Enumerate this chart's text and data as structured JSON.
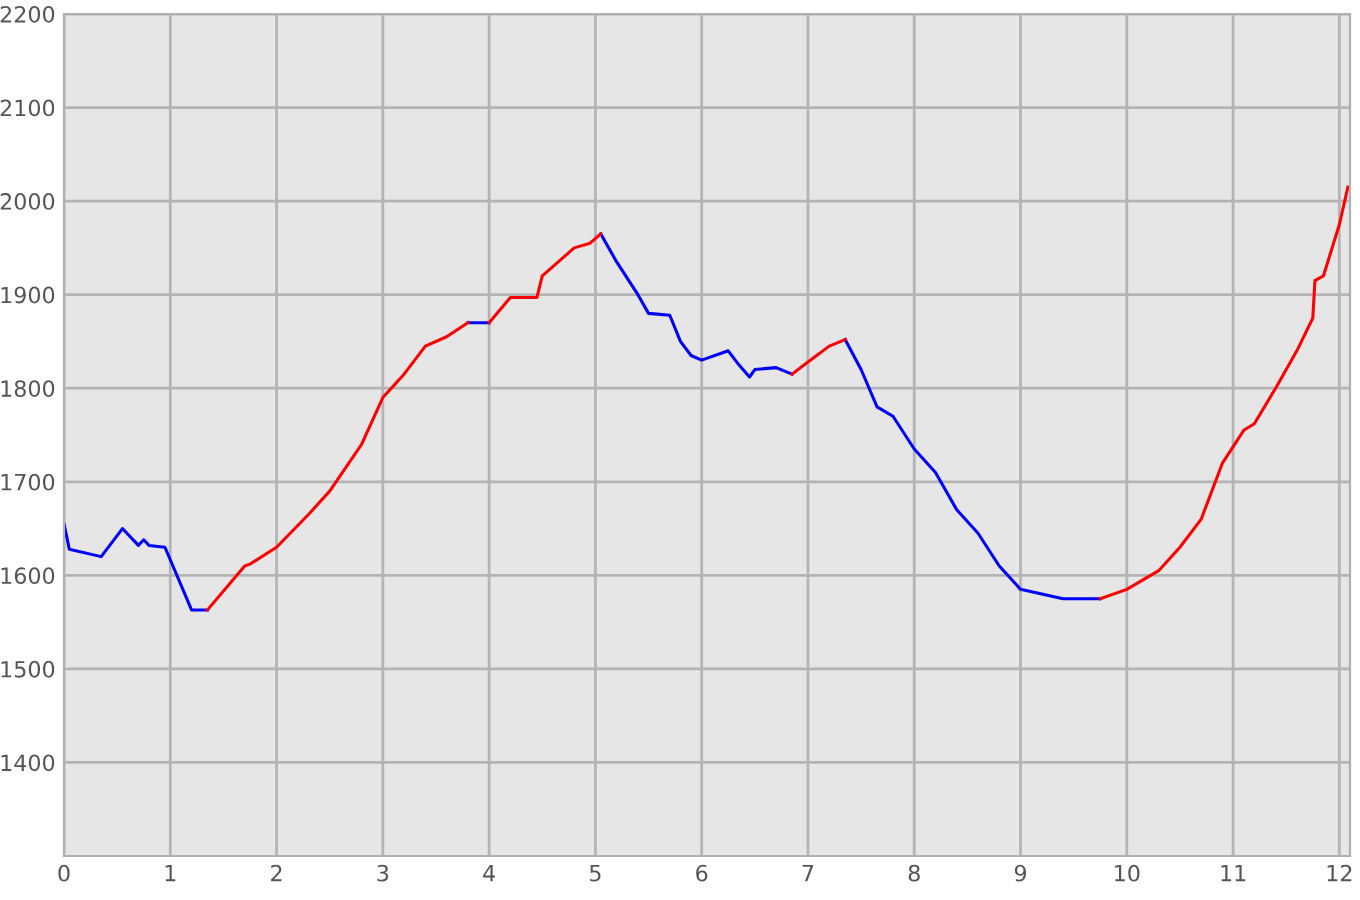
{
  "chart_data": {
    "type": "line",
    "xlim": [
      0,
      12.1
    ],
    "ylim": [
      1300,
      2200
    ],
    "xticks": [
      0,
      1,
      2,
      3,
      4,
      5,
      6,
      7,
      8,
      9,
      10,
      11,
      12
    ],
    "yticks": [
      1400,
      1500,
      1600,
      1700,
      1800,
      1900,
      2000,
      2100,
      2200
    ],
    "grid": true,
    "marker": "none",
    "line_style": "solid",
    "series": [
      {
        "color": "#0000ff",
        "x": [
          0.0,
          0.05,
          0.35,
          0.55,
          0.7,
          0.75,
          0.8,
          0.95,
          1.2,
          1.35,
          3.0,
          3.8,
          4.0,
          4.5,
          5.05,
          5.2,
          5.4,
          5.5,
          5.7,
          5.8,
          5.9,
          6.0,
          6.25,
          6.35,
          6.45,
          6.5,
          6.7,
          6.85,
          7.0,
          7.35,
          7.5,
          7.65,
          7.8,
          8.0,
          8.2,
          8.4,
          8.6,
          8.8,
          9.0,
          9.2,
          9.4,
          9.75
        ],
        "values": [
          1655,
          1628,
          1620,
          1650,
          1632,
          1638,
          1632,
          1630,
          1563,
          1563,
          null,
          1870,
          1870,
          null,
          1965,
          1935,
          1900,
          1880,
          1878,
          1850,
          1835,
          1830,
          1840,
          1825,
          1812,
          1820,
          1822,
          1815,
          null,
          1852,
          1820,
          1780,
          1770,
          1735,
          1710,
          1670,
          1645,
          1610,
          1585,
          1580,
          1575,
          1575
        ]
      },
      {
        "color": "#ff0000",
        "x": [
          1.35,
          1.7,
          1.75,
          2.0,
          2.3,
          2.5,
          2.8,
          3.0,
          3.2,
          3.4,
          3.6,
          3.8,
          3.9,
          4.0,
          4.2,
          4.45,
          4.5,
          4.8,
          4.95,
          5.05,
          5.5,
          6.85,
          7.0,
          7.2,
          7.35,
          8.5,
          9.75,
          10.0,
          10.3,
          10.5,
          10.7,
          10.9,
          11.1,
          11.2,
          11.4,
          11.6,
          11.75,
          11.77,
          11.85,
          12.0,
          12.08
        ],
        "values": [
          1563,
          1610,
          1612,
          1630,
          1665,
          1690,
          1740,
          1790,
          1815,
          1845,
          1855,
          1870,
          null,
          1870,
          1897,
          1897,
          1920,
          1950,
          1955,
          1965,
          null,
          1815,
          1828,
          1845,
          1852,
          null,
          1575,
          1585,
          1605,
          1630,
          1660,
          1720,
          1755,
          1762,
          1800,
          1840,
          1875,
          1915,
          1920,
          1975,
          2015
        ]
      }
    ]
  }
}
